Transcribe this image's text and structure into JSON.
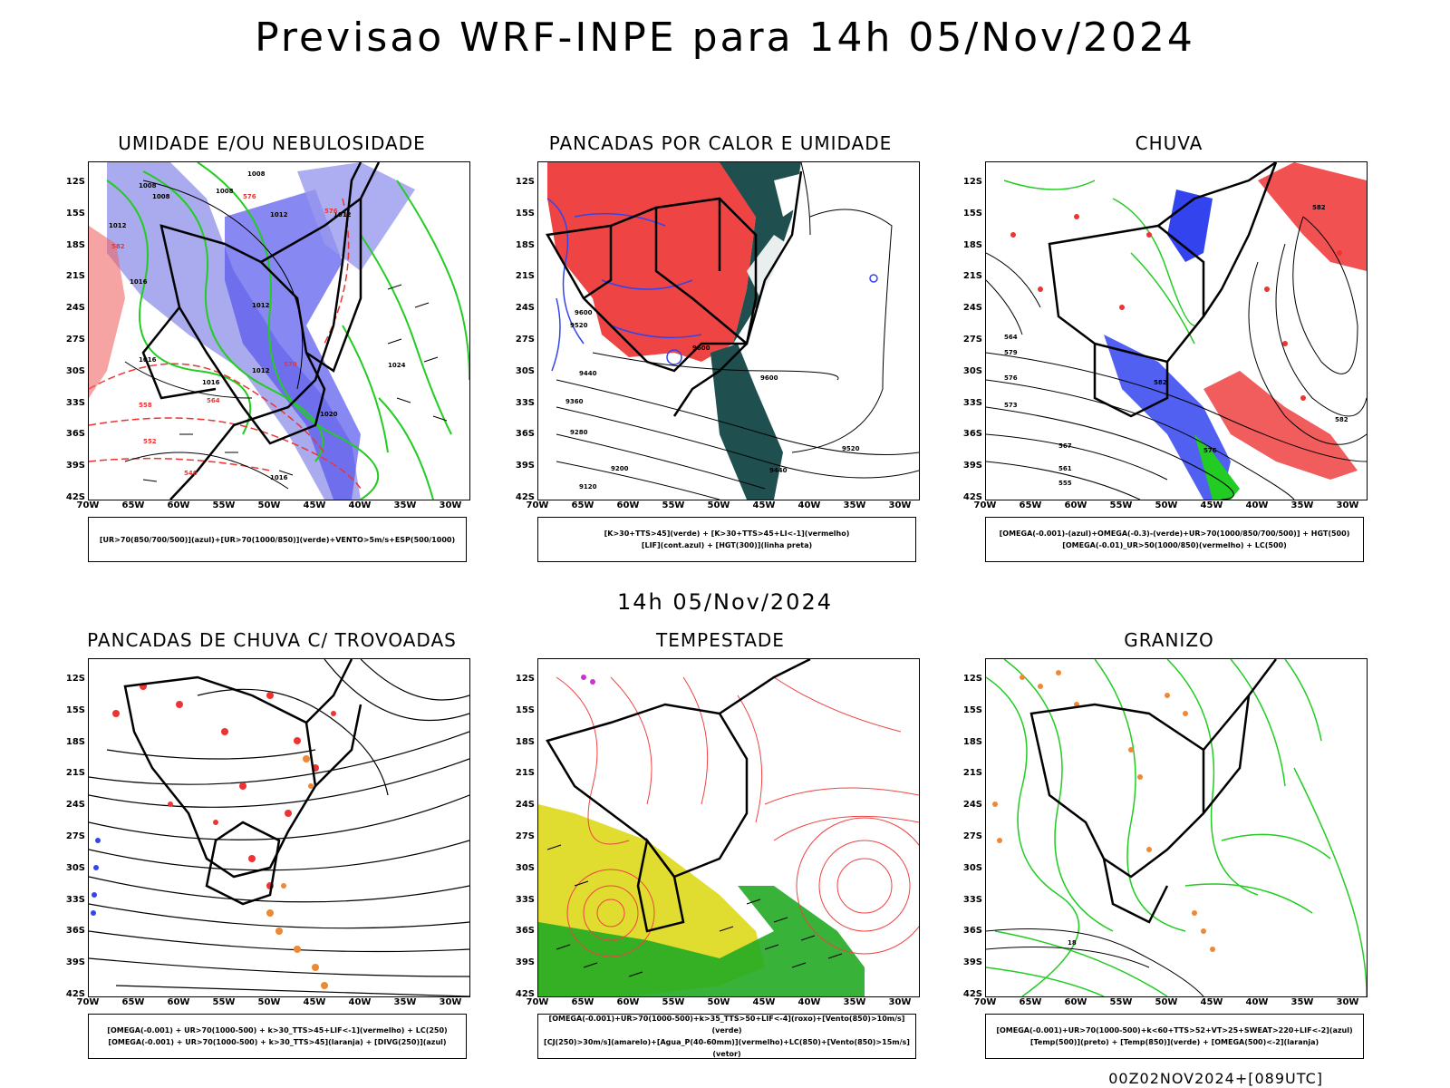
{
  "title": "Previsao WRF-INPE  para 14h 05/Nov/2024",
  "mid_date": "14h 05/Nov/2024",
  "footer": "00Z02NOV2024+[089UTC]",
  "lat_labels": [
    "12S",
    "15S",
    "18S",
    "21S",
    "24S",
    "27S",
    "30S",
    "33S",
    "36S",
    "39S",
    "42S"
  ],
  "lon_labels": [
    "70W",
    "65W",
    "60W",
    "55W",
    "50W",
    "45W",
    "40W",
    "35W",
    "30W"
  ],
  "panels": [
    {
      "title": "UMIDADE E/OU NEBULOSIDADE",
      "caption_lines": [
        "[UR>70(850/700/500)](azul)+[UR>70(1000/850)](verde)+VENTO>5m/s+ESP(500/1000)"
      ],
      "contour_labels": [
        "1008",
        "1008",
        "1008",
        "1008",
        "1012",
        "1012",
        "1016",
        "1012",
        "1016",
        "1012",
        "1016",
        "1012",
        "1020",
        "1024",
        "1016",
        "576",
        "576",
        "570",
        "564",
        "558",
        "552",
        "546",
        "582"
      ]
    },
    {
      "title": "PANCADAS POR CALOR E UMIDADE",
      "caption_lines": [
        "[K>30+TTS>45](verde) + [K>30+TTS>45+LI<-1](vermelho)",
        "[LIF](cont.azul) + [HGT(300)](linha preta)"
      ],
      "contour_labels": [
        "9600",
        "9520",
        "9440",
        "9360",
        "9280",
        "9200",
        "9120",
        "9600",
        "9600",
        "9520",
        "9440"
      ]
    },
    {
      "title": "CHUVA",
      "caption_lines": [
        "[OMEGA(-0.001)-(azul)+OMEGA(-0.3)-(verde)+UR>70(1000/850/700/500)] + HGT(500)",
        "[OMEGA(-0.01)_UR>50(1000/850)(vermelho) + LC(500)"
      ],
      "contour_labels": [
        "582",
        "579",
        "576",
        "573",
        "567",
        "561",
        "555",
        "564",
        "582",
        "576",
        "582"
      ]
    },
    {
      "title": "PANCADAS DE CHUVA C/ TROVOADAS",
      "caption_lines": [
        "[OMEGA(-0.001) + UR>70(1000-500) + k>30_TTS>45+LIF<-1](vermelho) + LC(250)",
        "[OMEGA(-0.001) + UR>70(1000-500) + k>30_TTS>45](laranja) + [DIVG(250)](azul)"
      ],
      "contour_labels": []
    },
    {
      "title": "TEMPESTADE",
      "caption_lines": [
        "[OMEGA(-0.001)+UR>70(1000-500)+k>35_TTS>50+LIF<-4](roxo)+[Vento(850)>10m/s](verde)",
        "[CJ(250)>30m/s](amarelo)+[Agua_P(40-60mm)](vermelho)+LC(850)+[Vento(850)>15m/s](vetor)"
      ],
      "contour_labels": []
    },
    {
      "title": "GRANIZO",
      "caption_lines": [
        "[OMEGA(-0.001)+UR>70(1000-500)+k<60+TTS>52+VT>25+SWEAT>220+LIF<-2](azul)",
        "[Temp(500)](preto) + [Temp(850)](verde) + [OMEGA(500)<-2](laranja)"
      ],
      "contour_labels": [
        "18"
      ]
    }
  ],
  "colors": {
    "blue": "#3333ee",
    "light_blue": "#aaaaee",
    "green": "#22cc22",
    "red": "#ee3333",
    "dark_teal": "#1f4f4f",
    "orange": "#ee8833",
    "yellow": "#e0dc30",
    "purple": "#cc33cc"
  }
}
